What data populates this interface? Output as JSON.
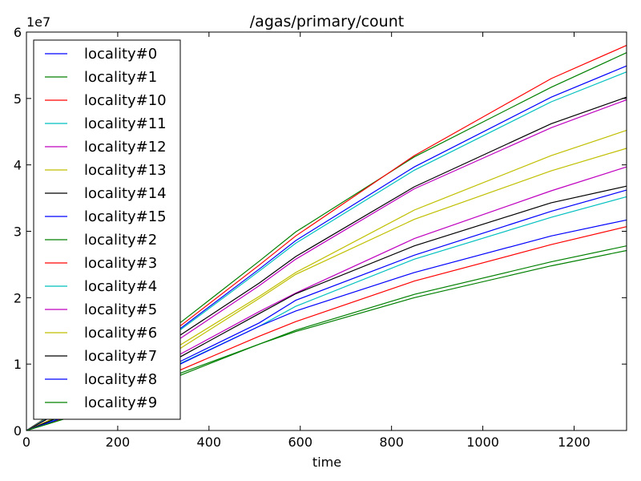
{
  "chart_data": {
    "type": "line",
    "title": "/agas/primary/count",
    "xlabel": "time",
    "ylabel": "",
    "xlim": [
      0,
      1315
    ],
    "ylim": [
      0,
      60000000
    ],
    "y_offset_label": "1e7",
    "x_ticks": [
      0,
      200,
      400,
      600,
      800,
      1000,
      1200
    ],
    "y_ticks": [
      0,
      10000000,
      20000000,
      30000000,
      40000000,
      50000000,
      60000000
    ],
    "y_tick_labels": [
      "0",
      "1",
      "2",
      "3",
      "4",
      "5",
      "6"
    ],
    "legend_position": "upper-left",
    "grid": false,
    "x": [
      0,
      100,
      200,
      340,
      510,
      590,
      850,
      1150,
      1315
    ],
    "series": [
      {
        "name": "locality#0",
        "color": "#0000ff",
        "values": [
          0,
          4300000,
          9000000,
          15500000,
          24300000,
          28600000,
          39700000,
          50200000,
          54900000
        ]
      },
      {
        "name": "locality#1",
        "color": "#008000",
        "values": [
          0,
          4500000,
          9500000,
          16400000,
          25500000,
          29900000,
          41200000,
          51700000,
          56900000
        ]
      },
      {
        "name": "locality#10",
        "color": "#ff0000",
        "values": [
          0,
          4400000,
          9300000,
          15900000,
          24900000,
          29300000,
          41400000,
          53000000,
          58000000
        ]
      },
      {
        "name": "locality#11",
        "color": "#00bfbf",
        "values": [
          0,
          4200000,
          8900000,
          15300000,
          24000000,
          28200000,
          39200000,
          49500000,
          54000000
        ]
      },
      {
        "name": "locality#12",
        "color": "#bf00bf",
        "values": [
          0,
          3800000,
          8100000,
          14000000,
          21800000,
          25800000,
          36400000,
          45600000,
          49800000
        ]
      },
      {
        "name": "locality#13",
        "color": "#bfbf00",
        "values": [
          0,
          3100000,
          6500000,
          13000000,
          20200000,
          23800000,
          33200000,
          41400000,
          45200000
        ]
      },
      {
        "name": "locality#14",
        "color": "#000000",
        "values": [
          0,
          3800000,
          8200000,
          14500000,
          22200000,
          26200000,
          36700000,
          46200000,
          50200000
        ]
      },
      {
        "name": "locality#15",
        "color": "#0000ff",
        "values": [
          0,
          2800000,
          5800000,
          10500000,
          16200000,
          19600000,
          26400000,
          33000000,
          36200000
        ]
      },
      {
        "name": "locality#2",
        "color": "#008000",
        "values": [
          0,
          2100000,
          4300000,
          8700000,
          13000000,
          15100000,
          20500000,
          25400000,
          27800000
        ]
      },
      {
        "name": "locality#3",
        "color": "#ff0000",
        "values": [
          0,
          2200000,
          4600000,
          9200000,
          14200000,
          16400000,
          22500000,
          28000000,
          30700000
        ]
      },
      {
        "name": "locality#4",
        "color": "#00bfbf",
        "values": [
          0,
          2500000,
          5100000,
          10200000,
          15700000,
          18700000,
          25800000,
          32100000,
          35200000
        ]
      },
      {
        "name": "locality#5",
        "color": "#bf00bf",
        "values": [
          0,
          3000000,
          6200000,
          11600000,
          17900000,
          20700000,
          28900000,
          36100000,
          39700000
        ]
      },
      {
        "name": "locality#6",
        "color": "#bfbf00",
        "values": [
          0,
          3000000,
          6400000,
          12500000,
          19900000,
          23500000,
          31800000,
          39100000,
          42500000
        ]
      },
      {
        "name": "locality#7",
        "color": "#000000",
        "values": [
          0,
          2800000,
          5800000,
          11200000,
          17600000,
          20600000,
          27800000,
          34300000,
          36800000
        ]
      },
      {
        "name": "locality#8",
        "color": "#0000ff",
        "values": [
          0,
          2400000,
          5000000,
          10100000,
          15700000,
          18000000,
          23800000,
          29300000,
          31700000
        ]
      },
      {
        "name": "locality#9",
        "color": "#008000",
        "values": [
          0,
          2100000,
          4200000,
          8400000,
          13000000,
          14900000,
          20000000,
          24800000,
          27100000
        ]
      }
    ]
  }
}
